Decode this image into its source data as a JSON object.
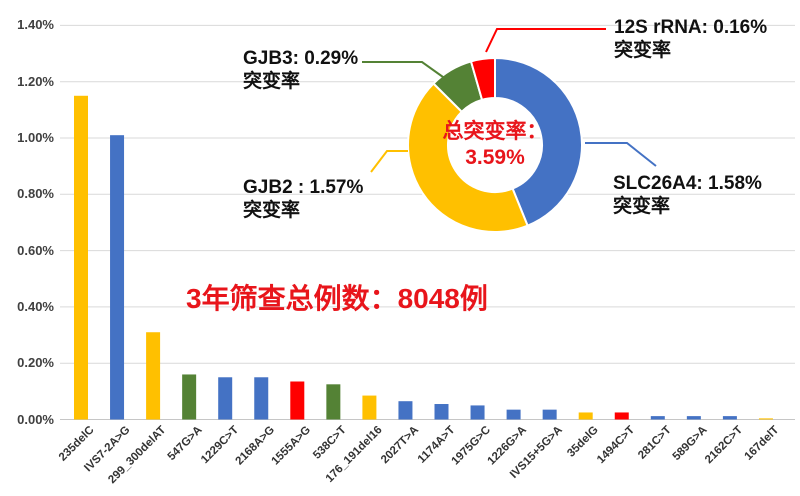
{
  "chart_data": [
    {
      "type": "bar",
      "title": "",
      "xlabel": "",
      "ylabel": "",
      "ylim": [
        0,
        1.4
      ],
      "grid": true,
      "y_ticks": [
        "1.40%",
        "1.20%",
        "1.00%",
        "0.80%",
        "0.60%",
        "0.40%",
        "0.20%",
        "0.00%"
      ],
      "categories": [
        "235delC",
        "IVS7-2A>G",
        "299_300delAT",
        "547G>A",
        "1229C>T",
        "2168A>G",
        "1555A>G",
        "538C>T",
        "176_191del16",
        "2027T>A",
        "1174A>T",
        "1975G>C",
        "1226G>A",
        "IVS15+5G>A",
        "35delG",
        "1494C>T",
        "281C>T",
        "589G>A",
        "2162C>T",
        "167delT"
      ],
      "values": [
        1.15,
        1.01,
        0.31,
        0.16,
        0.15,
        0.15,
        0.135,
        0.125,
        0.085,
        0.065,
        0.055,
        0.05,
        0.035,
        0.035,
        0.025,
        0.025,
        0.012,
        0.012,
        0.012,
        0.004
      ],
      "value_unit": "%",
      "bar_colors": [
        "#FFC000",
        "#4472C4",
        "#FFC000",
        "#548235",
        "#4472C4",
        "#4472C4",
        "#FF0000",
        "#548235",
        "#FFC000",
        "#4472C4",
        "#4472C4",
        "#4472C4",
        "#4472C4",
        "#4472C4",
        "#FFC000",
        "#FF0000",
        "#4472C4",
        "#4472C4",
        "#4472C4",
        "#FFC000"
      ],
      "gene_color_map": {
        "GJB2": "#FFC000",
        "SLC26A4": "#4472C4",
        "GJB3": "#548235",
        "12S rRNA": "#FF0000"
      },
      "annotation": "3年筛查总例数：8048例"
    },
    {
      "type": "pie",
      "subtype": "donut",
      "legend_position": "none",
      "segments": [
        {
          "label": "SLC26A4",
          "value": 1.58,
          "color": "#4472C4",
          "callout_line1": "SLC26A4: 1.58%",
          "callout_line2": "突变率"
        },
        {
          "label": "GJB2",
          "value": 1.57,
          "color": "#FFC000",
          "callout_line1": "GJB2 : 1.57%",
          "callout_line2": "突变率"
        },
        {
          "label": "GJB3",
          "value": 0.29,
          "color": "#548235",
          "callout_line1": "GJB3: 0.29%",
          "callout_line2": "突变率"
        },
        {
          "label": "12S rRNA",
          "value": 0.16,
          "color": "#FF0000",
          "callout_line1": "12S rRNA: 0.16%",
          "callout_line2": "突变率"
        }
      ],
      "center_label_line1": "总突变率：",
      "center_label_line2": "3.59%"
    }
  ],
  "colors": {
    "grid": "#D9D9D9",
    "axis_text": "#404040",
    "red_text": "#E8151B",
    "background": "#FFFFFF"
  }
}
